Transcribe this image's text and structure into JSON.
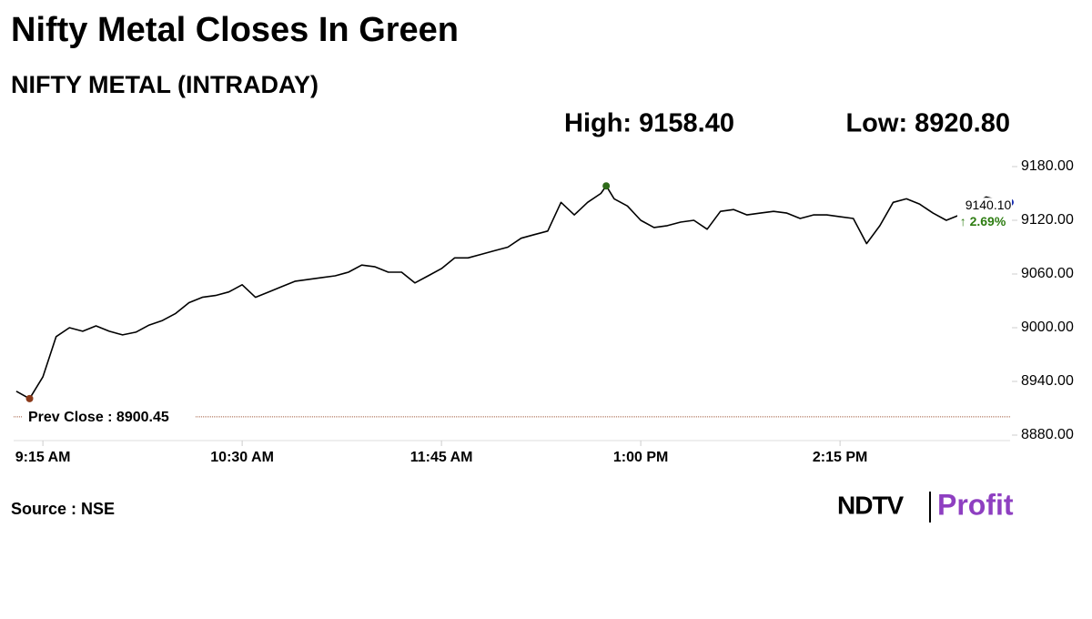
{
  "chart_data": {
    "type": "line",
    "title": "Nifty Metal Closes In Green",
    "subtitle": "NIFTY METAL (INTRADAY)",
    "high_label": "High: 9158.40",
    "low_label": "Low: 8920.80",
    "last_label": "9140.10",
    "change_label": "↑ 2.69%",
    "prev_close": 8900.45,
    "prev_close_label": "Prev Close : 8900.45",
    "source": "Source : NSE",
    "brand": "NDTV",
    "brand_product": "Profit",
    "color": "#000000",
    "x": [
      545,
      550,
      555,
      560,
      565,
      570,
      575,
      580,
      585,
      590,
      595,
      600,
      605,
      610,
      615,
      620,
      625,
      630,
      635,
      640,
      645,
      650,
      655,
      660,
      665,
      670,
      675,
      680,
      685,
      690,
      695,
      700,
      705,
      710,
      715,
      720,
      725,
      730,
      735,
      740,
      745,
      750,
      755,
      760,
      765,
      767,
      770,
      775,
      780,
      785,
      790,
      795,
      800,
      805,
      810,
      815,
      820,
      825,
      830,
      835,
      840,
      845,
      850,
      855,
      860,
      865,
      870,
      875,
      880,
      885,
      890,
      895,
      900,
      905,
      910,
      915,
      919
    ],
    "values": [
      8929,
      8920.8,
      8945,
      8990,
      9000,
      8996,
      9002,
      8996,
      8992,
      8995,
      9003,
      9008,
      9016,
      9028,
      9034,
      9036,
      9040,
      9048,
      9034,
      9040,
      9046,
      9052,
      9054,
      9056,
      9058,
      9062,
      9070,
      9068,
      9062,
      9062,
      9050,
      9058,
      9066,
      9078,
      9078,
      9082,
      9086,
      9090,
      9100,
      9104,
      9108,
      9140,
      9126,
      9140,
      9150,
      9158.4,
      9144,
      9136,
      9120,
      9112,
      9114,
      9118,
      9120,
      9110,
      9130,
      9132,
      9126,
      9128,
      9130,
      9128,
      9122,
      9126,
      9126,
      9124,
      9122,
      9094,
      9114,
      9140,
      9144,
      9138,
      9128,
      9120,
      9126,
      9138,
      9146,
      9142,
      9140.1
    ],
    "xlim": [
      544,
      919
    ],
    "xticks": [
      {
        "value": 555,
        "label": "9:15 AM"
      },
      {
        "value": 630,
        "label": "10:30 AM"
      },
      {
        "value": 705,
        "label": "11:45 AM"
      },
      {
        "value": 780,
        "label": "1:00 PM"
      },
      {
        "value": 855,
        "label": "2:15 PM"
      }
    ],
    "ylim": [
      8880,
      9180
    ],
    "yticks": [
      {
        "value": 8880,
        "label": "8880.00"
      },
      {
        "value": 8940,
        "label": "8940.00"
      },
      {
        "value": 9000,
        "label": "9000.00"
      },
      {
        "value": 9060,
        "label": "9060.00"
      },
      {
        "value": 9120,
        "label": "9120.00"
      },
      {
        "value": 9180,
        "label": "9180.00"
      }
    ],
    "grid": false
  }
}
